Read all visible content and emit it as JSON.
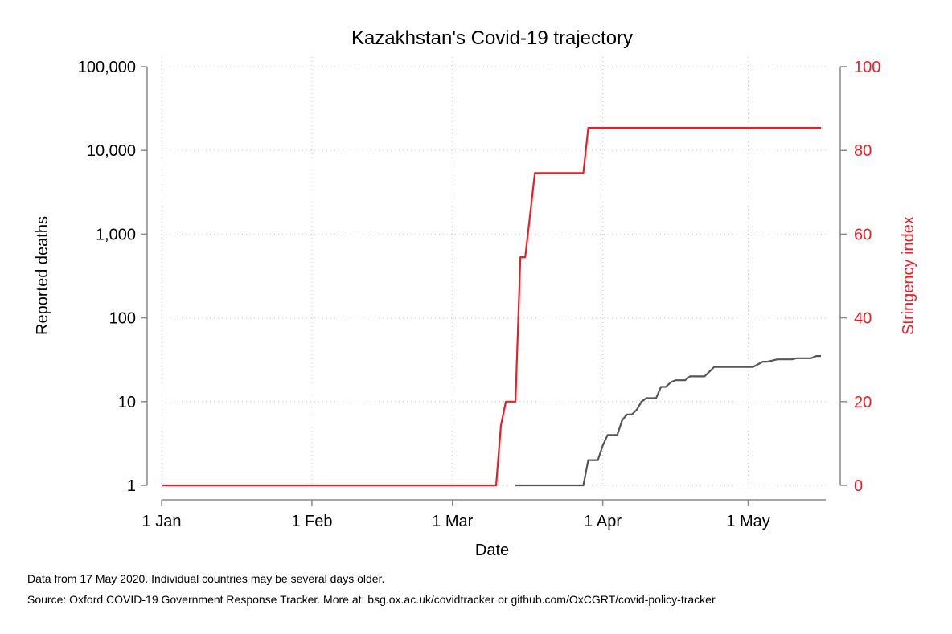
{
  "chart_data": {
    "type": "line",
    "title": "Kazakhstan's Covid-19 trajectory",
    "xlabel": "Date",
    "ylabel_left": "Reported deaths",
    "ylabel_right": "Stringency index",
    "x_ticks": [
      "1 Jan",
      "1 Feb",
      "1 Mar",
      "1 Apr",
      "1 May"
    ],
    "x_tick_dates": [
      "2020-01-01",
      "2020-02-01",
      "2020-03-01",
      "2020-04-01",
      "2020-05-01"
    ],
    "xlim": [
      "2020-01-01",
      "2020-05-17"
    ],
    "y_left_scale": "log",
    "y_left_ticks": [
      1,
      10,
      100,
      1000,
      10000,
      100000
    ],
    "y_left_tick_labels": [
      "1",
      "10",
      "100",
      "1,000",
      "10,000",
      "100,000"
    ],
    "y_left_lim": [
      1,
      100000
    ],
    "y_right_ticks": [
      0,
      20,
      40,
      60,
      80,
      100
    ],
    "y_right_tick_labels": [
      "0",
      "20",
      "40",
      "60",
      "80",
      "100"
    ],
    "y_right_lim": [
      0,
      100
    ],
    "grid": true,
    "colors": {
      "deaths": "#555555",
      "stringency": "#ee1c25",
      "axis": "#888888"
    },
    "series": [
      {
        "axis": "right",
        "color": "#ee1c25",
        "step": true,
        "points": [
          [
            "2020-01-01",
            0
          ],
          [
            "2020-03-10",
            0
          ],
          [
            "2020-03-11",
            14.3
          ],
          [
            "2020-03-12",
            20.0
          ],
          [
            "2020-03-14",
            20.0
          ],
          [
            "2020-03-15",
            54.5
          ],
          [
            "2020-03-16",
            54.5
          ],
          [
            "2020-03-18",
            74.6
          ],
          [
            "2020-03-28",
            74.6
          ],
          [
            "2020-03-29",
            85.4
          ],
          [
            "2020-05-16",
            85.4
          ]
        ]
      },
      {
        "axis": "left",
        "color": "#555555",
        "step": true,
        "points": [
          [
            "2020-03-14",
            1
          ],
          [
            "2020-03-28",
            1
          ],
          [
            "2020-03-29",
            2
          ],
          [
            "2020-03-31",
            2
          ],
          [
            "2020-04-01",
            3
          ],
          [
            "2020-04-02",
            4
          ],
          [
            "2020-04-04",
            4
          ],
          [
            "2020-04-05",
            6
          ],
          [
            "2020-04-06",
            7
          ],
          [
            "2020-04-07",
            7
          ],
          [
            "2020-04-08",
            8
          ],
          [
            "2020-04-09",
            10
          ],
          [
            "2020-04-10",
            11
          ],
          [
            "2020-04-12",
            11
          ],
          [
            "2020-04-13",
            15
          ],
          [
            "2020-04-14",
            15
          ],
          [
            "2020-04-15",
            17
          ],
          [
            "2020-04-16",
            18
          ],
          [
            "2020-04-18",
            18
          ],
          [
            "2020-04-19",
            20
          ],
          [
            "2020-04-22",
            20
          ],
          [
            "2020-04-24",
            26
          ],
          [
            "2020-05-02",
            26
          ],
          [
            "2020-05-04",
            30
          ],
          [
            "2020-05-05",
            30
          ],
          [
            "2020-05-07",
            32
          ],
          [
            "2020-05-10",
            32
          ],
          [
            "2020-05-11",
            33
          ],
          [
            "2020-05-14",
            33
          ],
          [
            "2020-05-15",
            35
          ],
          [
            "2020-05-16",
            35
          ]
        ]
      }
    ]
  },
  "footnotes": {
    "line1": "Data from 17 May 2020. Individual countries may be several days older.",
    "line2": "Source: Oxford COVID-19 Government Response Tracker. More at: bsg.ox.ac.uk/covidtracker or github.com/OxCGRT/covid-policy-tracker"
  }
}
